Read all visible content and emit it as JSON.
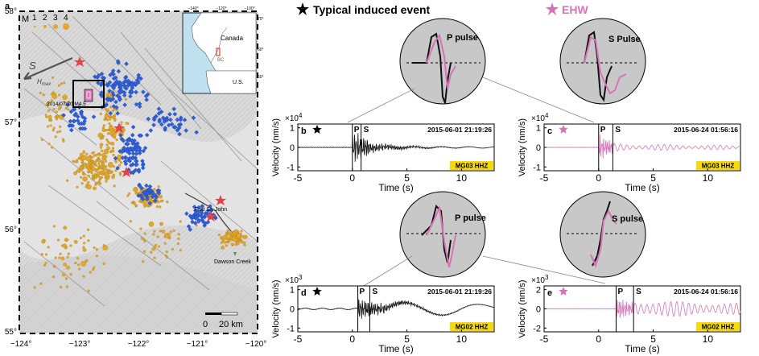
{
  "map": {
    "panel_label": "a",
    "legend_m": "M",
    "legend_sizes": [
      "1",
      "2",
      "3",
      "4"
    ],
    "lat_labels": [
      "58°",
      "57°",
      "56°",
      "55°"
    ],
    "lon_labels": [
      "−124°",
      "−123°",
      "−122°",
      "−121°",
      "−120°"
    ],
    "hmax": "H",
    "hmax_sub": "max",
    "hmax_s": "S",
    "event_label": "2014/07/30 M4.5",
    "city1": "Fort St. John",
    "city2": "Dawson Creek",
    "scale_0": "0",
    "scale_20": "20 km",
    "inset": {
      "lon_labels": [
        "−140°",
        "−120°",
        "−100°"
      ],
      "lat_labels": [
        "70°",
        "60°",
        "50°"
      ],
      "canada": "Canada",
      "bc": "BC",
      "us": "U.S."
    }
  },
  "legend_top": {
    "typical": "Typical induced event",
    "ehw": "EHW",
    "typical_color": "#000000",
    "ehw_color": "#d873b8"
  },
  "pulses": {
    "top_left": "P pulse",
    "top_right": "S Pulse",
    "bottom_left": "P pulse",
    "bottom_right": "S pulse"
  },
  "panels": {
    "b": {
      "label": "b",
      "exp_base": "×10",
      "exp_pow": "4",
      "ylabel": "Velocity (nm/s)",
      "xlabel": "Time (s)",
      "timestamp": "2015-06-01 21:19:26",
      "station": "MG03  HHZ",
      "yticks": [
        "1",
        "0",
        "-1"
      ],
      "xticks": [
        "-5",
        "0",
        "5",
        "10"
      ],
      "p": "P",
      "s": "S"
    },
    "c": {
      "label": "c",
      "exp_base": "×10",
      "exp_pow": "4",
      "ylabel": "Velocity (nm/s)",
      "xlabel": "Time (s)",
      "timestamp": "2015-06-24 01:56:16",
      "station": "MG03  HHZ",
      "yticks": [
        "1",
        "0",
        "-1"
      ],
      "xticks": [
        "-5",
        "0",
        "5",
        "10"
      ],
      "p": "P",
      "s": "S"
    },
    "d": {
      "label": "d",
      "exp_base": "×10",
      "exp_pow": "3",
      "ylabel": "Velocity (nm/s)",
      "xlabel": "Time (s)",
      "timestamp": "2015-06-01 21:19:26",
      "station": "MG02  HHZ",
      "yticks": [
        "1",
        "0",
        "-1"
      ],
      "xticks": [
        "-5",
        "0",
        "5",
        "10"
      ],
      "p": "P",
      "s": "S"
    },
    "e": {
      "label": "e",
      "exp_base": "×10",
      "exp_pow": "3",
      "ylabel": "Velocity (nm/s)",
      "xlabel": "Time (s)",
      "timestamp": "2015-06-24 01:56:16",
      "station": "MG02  HHZ",
      "yticks": [
        "2",
        "0",
        "-2"
      ],
      "xticks": [
        "-5",
        "0",
        "5",
        "10"
      ],
      "p": "P",
      "s": "S"
    }
  },
  "colors": {
    "orange": "#e2a82a",
    "blue": "#2f5fd8",
    "red_star": "#e0434a",
    "magenta": "#d873b8",
    "station_box": "#f5d90a",
    "terrain": "#d7d7d7",
    "water": "#bfe0ef"
  }
}
